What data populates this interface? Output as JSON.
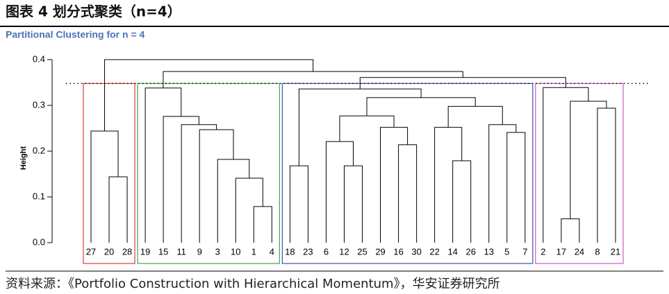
{
  "header": "图表 4 划分式聚类（n=4）",
  "source": "资料来源：《Portfolio Construction with Hierarchical Momentum》，华安证券研究所",
  "chart_data": {
    "type": "dendrogram",
    "title": "Partitional Clustering for n = 4",
    "y_label": "Height",
    "ylim": [
      0,
      0.4
    ],
    "yticks": [
      {
        "value": 0,
        "label": "0.0"
      },
      {
        "value": 0.1,
        "label": "0.1"
      },
      {
        "value": 0.2,
        "label": "0.2"
      },
      {
        "value": 0.3,
        "label": "0.3"
      },
      {
        "value": 0.4,
        "label": "0.4"
      }
    ],
    "cut": 0.348,
    "line_color": "#000000",
    "cluster_colors": [
      "#e0393e",
      "#3fa34d",
      "#3e4fb1",
      "#c25bc4"
    ],
    "tree": {
      "height": 0.4,
      "children": [
        {
          "height": 0.244,
          "children": [
            "27",
            {
              "height": 0.144,
              "children": [
                "20",
                "28"
              ]
            }
          ]
        },
        {
          "height": 0.374,
          "children": [
            {
              "height": 0.338,
              "children": [
                "19",
                {
                  "height": 0.276,
                  "children": [
                    "15",
                    {
                      "height": 0.258,
                      "children": [
                        "11",
                        {
                          "height": 0.247,
                          "children": [
                            "9",
                            {
                              "height": 0.182,
                              "children": [
                                "3",
                                {
                                  "height": 0.141,
                                  "children": [
                                    "10",
                                    {
                                      "height": 0.079,
                                      "children": [
                                        "1",
                                        "4"
                                      ]
                                    }
                                  ]
                                }
                              ]
                            }
                          ]
                        }
                      ]
                    }
                  ]
                }
              ]
            },
            {
              "height": 0.361,
              "children": [
                {
                  "height": 0.336,
                  "children": [
                    {
                      "height": 0.168,
                      "children": [
                        "18",
                        "23"
                      ]
                    },
                    {
                      "height": 0.317,
                      "children": [
                        {
                          "height": 0.277,
                          "children": [
                            {
                              "height": 0.221,
                              "children": [
                                "6",
                                {
                                  "height": 0.168,
                                  "children": [
                                    "12",
                                    "25"
                                  ]
                                }
                              ]
                            },
                            {
                              "height": 0.252,
                              "children": [
                                "29",
                                {
                                  "height": 0.214,
                                  "children": [
                                    "16",
                                    "30"
                                  ]
                                }
                              ]
                            }
                          ]
                        },
                        {
                          "height": 0.298,
                          "children": [
                            {
                              "height": 0.252,
                              "children": [
                                "22",
                                {
                                  "height": 0.179,
                                  "children": [
                                    "14",
                                    "26"
                                  ]
                                }
                              ]
                            },
                            {
                              "height": 0.258,
                              "children": [
                                "13",
                                {
                                  "height": 0.241,
                                  "children": [
                                    "5",
                                    "7"
                                  ]
                                }
                              ]
                            }
                          ]
                        }
                      ]
                    }
                  ]
                },
                {
                  "height": 0.339,
                  "children": [
                    "2",
                    {
                      "height": 0.309,
                      "children": [
                        {
                          "height": 0.052,
                          "children": [
                            "17",
                            "24"
                          ]
                        },
                        {
                          "height": 0.294,
                          "children": [
                            "8",
                            "21"
                          ]
                        }
                      ]
                    }
                  ]
                }
              ]
            }
          ]
        }
      ]
    }
  }
}
